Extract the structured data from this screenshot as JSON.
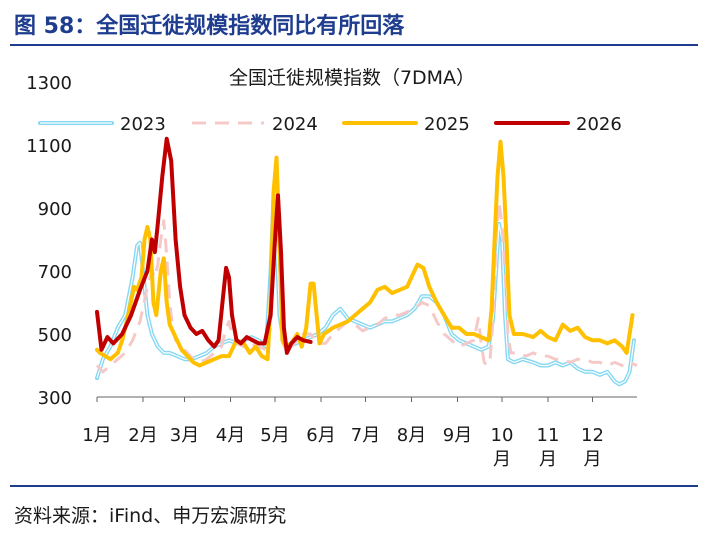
{
  "header": {
    "title": "图 58：全国迁徙规模指数同比有所回落"
  },
  "chart_data": {
    "type": "line",
    "title": "全国迁徙规模指数（7DMA）",
    "xlim": [
      1,
      365
    ],
    "xticks": [
      {
        "value": 1,
        "label": "1月"
      },
      {
        "value": 32,
        "label": "2月"
      },
      {
        "value": 60,
        "label": "3月"
      },
      {
        "value": 91,
        "label": "4月"
      },
      {
        "value": 121,
        "label": "5月"
      },
      {
        "value": 152,
        "label": "6月"
      },
      {
        "value": 182,
        "label": "7月"
      },
      {
        "value": 213,
        "label": "8月"
      },
      {
        "value": 244,
        "label": "9月"
      },
      {
        "value": 274,
        "label": "10月"
      },
      {
        "value": 305,
        "label": "11月"
      },
      {
        "value": 335,
        "label": "12月"
      }
    ],
    "ylim": [
      300,
      1300
    ],
    "yticks": [
      300,
      500,
      700,
      900,
      1100,
      1300
    ],
    "grid": false,
    "legend": "top",
    "series": [
      {
        "name": "2023",
        "color": "#86d8f2",
        "style": "double",
        "x": [
          1,
          5,
          10,
          15,
          20,
          25,
          28,
          30,
          32,
          35,
          38,
          42,
          46,
          50,
          55,
          60,
          65,
          70,
          75,
          80,
          85,
          90,
          95,
          100,
          105,
          110,
          115,
          118,
          120,
          122,
          124,
          127,
          130,
          135,
          140,
          145,
          150,
          155,
          160,
          165,
          170,
          175,
          180,
          185,
          190,
          195,
          200,
          205,
          210,
          215,
          220,
          225,
          230,
          235,
          240,
          245,
          250,
          255,
          260,
          265,
          268,
          270,
          272,
          274,
          276,
          278,
          282,
          288,
          295,
          300,
          305,
          310,
          315,
          320,
          325,
          330,
          335,
          340,
          345,
          350,
          353,
          357,
          360,
          363
        ],
        "values": [
          360,
          420,
          460,
          520,
          560,
          680,
          780,
          790,
          700,
          560,
          500,
          460,
          440,
          440,
          430,
          420,
          420,
          430,
          440,
          460,
          470,
          480,
          470,
          480,
          490,
          480,
          460,
          700,
          930,
          800,
          560,
          470,
          460,
          470,
          480,
          490,
          500,
          520,
          560,
          580,
          550,
          540,
          530,
          520,
          530,
          540,
          540,
          550,
          560,
          580,
          620,
          620,
          600,
          560,
          500,
          480,
          470,
          460,
          450,
          460,
          550,
          700,
          850,
          800,
          560,
          420,
          410,
          420,
          410,
          400,
          400,
          410,
          400,
          410,
          390,
          380,
          380,
          370,
          380,
          350,
          340,
          350,
          380,
          480
        ]
      },
      {
        "name": "2024",
        "color": "#f6c9c9",
        "style": "dashed",
        "x": [
          1,
          5,
          10,
          15,
          20,
          25,
          30,
          35,
          38,
          40,
          42,
          44,
          46,
          48,
          50,
          52,
          54,
          58,
          62,
          66,
          70,
          75,
          80,
          85,
          88,
          90,
          92,
          95,
          100,
          105,
          110,
          115,
          118,
          120,
          122,
          124,
          126,
          128,
          132,
          136,
          140,
          145,
          150,
          155,
          160,
          165,
          170,
          175,
          180,
          185,
          190,
          195,
          200,
          205,
          210,
          215,
          220,
          225,
          230,
          235,
          240,
          245,
          250,
          255,
          258,
          260,
          262,
          264,
          266,
          268,
          270,
          272,
          274,
          276,
          278,
          280,
          285,
          290,
          295,
          300,
          305,
          310,
          315,
          320,
          325,
          330,
          335,
          340,
          345,
          350,
          355,
          360,
          365
        ],
        "values": [
          400,
          380,
          400,
          420,
          440,
          480,
          540,
          650,
          700,
          680,
          720,
          800,
          860,
          750,
          600,
          520,
          480,
          460,
          440,
          420,
          410,
          420,
          440,
          460,
          520,
          540,
          500,
          470,
          460,
          470,
          460,
          450,
          520,
          700,
          900,
          820,
          560,
          450,
          460,
          480,
          500,
          500,
          470,
          470,
          500,
          520,
          540,
          530,
          510,
          520,
          530,
          550,
          560,
          560,
          570,
          580,
          600,
          590,
          540,
          500,
          480,
          460,
          470,
          480,
          550,
          470,
          410,
          400,
          420,
          550,
          800,
          920,
          850,
          700,
          500,
          440,
          440,
          430,
          440,
          430,
          430,
          420,
          420,
          410,
          420,
          420,
          410,
          410,
          400,
          410,
          400,
          410,
          400
        ]
      },
      {
        "name": "2025",
        "color": "#ffc000",
        "style": "solid",
        "x": [
          1,
          3,
          10,
          15,
          18,
          22,
          26,
          28,
          31,
          33,
          35,
          37,
          39,
          41,
          44,
          46,
          48,
          50,
          53,
          58,
          62,
          66,
          70,
          75,
          80,
          85,
          90,
          95,
          100,
          104,
          108,
          112,
          116,
          118,
          120,
          122,
          124,
          126,
          128,
          132,
          136,
          139,
          142,
          145,
          147,
          149,
          151,
          154,
          160,
          165,
          170,
          175,
          180,
          185,
          190,
          195,
          200,
          205,
          210,
          213,
          217,
          221,
          225,
          230,
          235,
          240,
          245,
          250,
          255,
          260,
          265,
          267,
          269,
          271,
          273,
          275,
          277,
          279,
          282,
          288,
          295,
          300,
          305,
          310,
          315,
          320,
          325,
          330,
          335,
          340,
          345,
          350,
          355,
          358,
          360,
          362
        ],
        "values": [
          450,
          440,
          420,
          440,
          480,
          560,
          650,
          640,
          680,
          800,
          840,
          800,
          600,
          560,
          700,
          740,
          600,
          530,
          500,
          450,
          430,
          410,
          400,
          410,
          420,
          430,
          430,
          480,
          470,
          440,
          460,
          430,
          420,
          600,
          950,
          1060,
          800,
          480,
          460,
          470,
          500,
          460,
          520,
          660,
          660,
          560,
          470,
          500,
          520,
          530,
          540,
          560,
          580,
          600,
          640,
          650,
          630,
          640,
          650,
          680,
          720,
          710,
          650,
          600,
          560,
          520,
          520,
          500,
          500,
          490,
          480,
          580,
          800,
          1000,
          1110,
          1000,
          800,
          560,
          500,
          500,
          490,
          510,
          490,
          480,
          530,
          510,
          520,
          490,
          480,
          480,
          470,
          480,
          460,
          440,
          500,
          560
        ]
      },
      {
        "name": "2026",
        "color": "#c00000",
        "style": "solid",
        "x": [
          1,
          4,
          8,
          12,
          18,
          24,
          30,
          35,
          38,
          40,
          42,
          45,
          48,
          51,
          54,
          57,
          60,
          64,
          68,
          72,
          76,
          80,
          83,
          86,
          88,
          90,
          92,
          95,
          98,
          102,
          106,
          110,
          114,
          118,
          121,
          123,
          125,
          127,
          129,
          132,
          136,
          140,
          145
        ],
        "values": [
          570,
          450,
          490,
          470,
          500,
          560,
          640,
          700,
          800,
          760,
          850,
          1000,
          1120,
          1050,
          800,
          650,
          560,
          520,
          500,
          510,
          480,
          460,
          480,
          620,
          710,
          680,
          560,
          480,
          470,
          490,
          480,
          470,
          470,
          560,
          800,
          940,
          760,
          520,
          440,
          470,
          490,
          480,
          475
        ]
      }
    ]
  },
  "footer": {
    "source": "资料来源：iFind、申万宏源研究"
  }
}
